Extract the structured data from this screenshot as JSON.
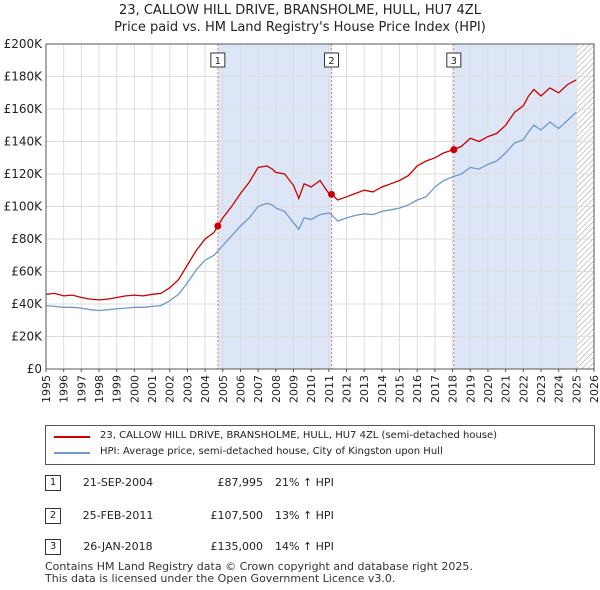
{
  "title_line1": "23, CALLOW HILL DRIVE, BRANSHOLME, HULL, HU7 4ZL",
  "title_line2": "Price paid vs. HM Land Registry's House Price Index (HPI)",
  "colors": {
    "property": "#cc0000",
    "hpi": "#6b99cf",
    "shade": "#dde6f7",
    "grid": "#dddddd",
    "marker_line": "#e08080"
  },
  "legend": {
    "property_label": "23, CALLOW HILL DRIVE, BRANSHOLME, HULL, HU7 4ZL (semi-detached house)",
    "hpi_label": "HPI: Average price, semi-detached house, City of Kingston upon Hull"
  },
  "transactions": [
    {
      "num": "1",
      "date": "21-SEP-2004",
      "price": "£87,995",
      "hpi": "21% ↑ HPI"
    },
    {
      "num": "2",
      "date": "25-FEB-2011",
      "price": "£107,500",
      "hpi": "13% ↑ HPI"
    },
    {
      "num": "3",
      "date": "26-JAN-2018",
      "price": "£135,000",
      "hpi": "14% ↑ HPI"
    }
  ],
  "footer_line1": "Contains HM Land Registry data © Crown copyright and database right 2025.",
  "footer_line2": "This data is licensed under the Open Government Licence v3.0.",
  "chart_data": {
    "type": "line",
    "title": "23, CALLOW HILL DRIVE, BRANSHOLME, HULL, HU7 4ZL",
    "subtitle": "Price paid vs. HM Land Registry's House Price Index (HPI)",
    "xlabel": "",
    "ylabel": "",
    "xlim": [
      1995,
      2026
    ],
    "ylim": [
      0,
      200000
    ],
    "y_ticks": [
      0,
      20000,
      40000,
      60000,
      80000,
      100000,
      120000,
      140000,
      160000,
      180000,
      200000
    ],
    "y_tick_labels": [
      "£0",
      "£20K",
      "£40K",
      "£60K",
      "£80K",
      "£100K",
      "£120K",
      "£140K",
      "£160K",
      "£180K",
      "£200K"
    ],
    "x_tick_labels": [
      "1995",
      "1996",
      "1997",
      "1998",
      "1999",
      "2000",
      "2001",
      "2002",
      "2003",
      "2004",
      "2005",
      "2006",
      "2007",
      "2008",
      "2009",
      "2010",
      "2011",
      "2012",
      "2013",
      "2014",
      "2015",
      "2016",
      "2017",
      "2018",
      "2019",
      "2020",
      "2021",
      "2022",
      "2023",
      "2024",
      "2025",
      "2026"
    ],
    "grid": true,
    "legend_position": "below",
    "shaded_ranges": [
      [
        2004.72,
        2011.15
      ],
      [
        2018.07,
        2025.0
      ]
    ],
    "hatched_after": 2025.0,
    "markers": [
      {
        "label": "1",
        "x": 2004.72,
        "y": 87995
      },
      {
        "label": "2",
        "x": 2011.15,
        "y": 107500
      },
      {
        "label": "3",
        "x": 2018.07,
        "y": 135000
      }
    ],
    "series": [
      {
        "name": "23, CALLOW HILL DRIVE, BRANSHOLME, HULL, HU7 4ZL (semi-detached house)",
        "color": "#cc0000",
        "x": [
          1995.0,
          1995.5,
          1996.0,
          1996.5,
          1997.0,
          1997.5,
          1998.0,
          1998.5,
          1999.0,
          1999.5,
          2000.0,
          2000.5,
          2001.0,
          2001.5,
          2002.0,
          2002.5,
          2003.0,
          2003.5,
          2004.0,
          2004.5,
          2004.72,
          2005.0,
          2005.5,
          2006.0,
          2006.5,
          2007.0,
          2007.5,
          2007.8,
          2008.0,
          2008.5,
          2009.0,
          2009.3,
          2009.6,
          2010.0,
          2010.5,
          2011.0,
          2011.15,
          2011.5,
          2012.0,
          2012.5,
          2013.0,
          2013.5,
          2014.0,
          2014.5,
          2015.0,
          2015.5,
          2016.0,
          2016.5,
          2017.0,
          2017.5,
          2018.07,
          2018.5,
          2019.0,
          2019.5,
          2020.0,
          2020.5,
          2021.0,
          2021.5,
          2022.0,
          2022.3,
          2022.6,
          2023.0,
          2023.5,
          2024.0,
          2024.5,
          2025.0
        ],
        "y": [
          46000,
          46500,
          45000,
          45500,
          44000,
          43000,
          42500,
          43000,
          44000,
          45000,
          45500,
          45000,
          46000,
          46500,
          50000,
          55000,
          64000,
          73000,
          80000,
          84000,
          87995,
          93000,
          100000,
          108000,
          115000,
          124000,
          125000,
          123000,
          121000,
          120000,
          113000,
          105000,
          114000,
          112000,
          116000,
          108000,
          107500,
          104000,
          106000,
          108000,
          110000,
          109000,
          112000,
          114000,
          116000,
          119000,
          125000,
          128000,
          130000,
          133000,
          135000,
          137000,
          142000,
          140000,
          143000,
          145000,
          150000,
          158000,
          162000,
          168000,
          172000,
          168000,
          173000,
          170000,
          175000,
          178000
        ]
      },
      {
        "name": "HPI: Average price, semi-detached house, City of Kingston upon Hull",
        "color": "#6b99cf",
        "x": [
          1995.0,
          1995.5,
          1996.0,
          1996.5,
          1997.0,
          1997.5,
          1998.0,
          1998.5,
          1999.0,
          1999.5,
          2000.0,
          2000.5,
          2001.0,
          2001.5,
          2002.0,
          2002.5,
          2003.0,
          2003.5,
          2004.0,
          2004.5,
          2004.72,
          2005.0,
          2005.5,
          2006.0,
          2006.5,
          2007.0,
          2007.5,
          2007.8,
          2008.0,
          2008.5,
          2009.0,
          2009.3,
          2009.6,
          2010.0,
          2010.5,
          2011.0,
          2011.15,
          2011.5,
          2012.0,
          2012.5,
          2013.0,
          2013.5,
          2014.0,
          2014.5,
          2015.0,
          2015.5,
          2016.0,
          2016.5,
          2017.0,
          2017.5,
          2018.07,
          2018.5,
          2019.0,
          2019.5,
          2020.0,
          2020.5,
          2021.0,
          2021.5,
          2022.0,
          2022.3,
          2022.6,
          2023.0,
          2023.5,
          2024.0,
          2024.5,
          2025.0
        ],
        "y": [
          39000,
          38500,
          38000,
          38000,
          37500,
          36500,
          36000,
          36500,
          37000,
          37500,
          38000,
          38000,
          38500,
          39000,
          42000,
          46000,
          53000,
          61000,
          67000,
          70000,
          72500,
          76000,
          82000,
          88000,
          93000,
          100000,
          102000,
          101000,
          99000,
          97000,
          90000,
          86000,
          93000,
          92000,
          95000,
          96000,
          95000,
          91000,
          93000,
          94500,
          95500,
          95000,
          97000,
          98000,
          99000,
          101000,
          104000,
          106000,
          112000,
          116000,
          118500,
          120000,
          124000,
          123000,
          126000,
          128000,
          133000,
          139000,
          141000,
          146000,
          150000,
          147000,
          152000,
          148000,
          153000,
          158000
        ]
      }
    ]
  }
}
